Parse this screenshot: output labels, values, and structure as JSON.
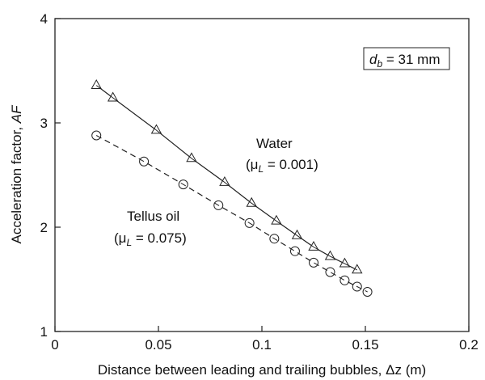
{
  "chart_data": {
    "type": "line",
    "xlabel_text": "Distance between leading and trailing bubbles, ",
    "xlabel_symbol": "Δz",
    "xlabel_unit": " (m)",
    "ylabel_text": "Acceleration factor, ",
    "ylabel_symbol": "AF",
    "xlim": [
      0,
      0.2
    ],
    "ylim": [
      1,
      4
    ],
    "xticks": [
      0,
      0.05,
      0.1,
      0.15,
      0.2
    ],
    "xtick_labels": [
      "0",
      "0.05",
      "0.1",
      "0.15",
      "0.2"
    ],
    "yticks": [
      1,
      2,
      3,
      4
    ],
    "ytick_labels": [
      "1",
      "2",
      "3",
      "4"
    ],
    "grid": false,
    "series": [
      {
        "name": "Water",
        "marker": "triangle",
        "line": "solid",
        "x": [
          0.02,
          0.028,
          0.049,
          0.066,
          0.082,
          0.095,
          0.107,
          0.117,
          0.125,
          0.133,
          0.14,
          0.146
        ],
        "y": [
          3.36,
          3.24,
          2.93,
          2.66,
          2.43,
          2.23,
          2.06,
          1.92,
          1.81,
          1.72,
          1.65,
          1.59
        ]
      },
      {
        "name": "Tellus oil",
        "marker": "circle",
        "line": "dashed",
        "x": [
          0.02,
          0.043,
          0.062,
          0.079,
          0.094,
          0.106,
          0.116,
          0.125,
          0.133,
          0.14,
          0.146,
          0.151
        ],
        "y": [
          2.88,
          2.63,
          2.41,
          2.21,
          2.04,
          1.89,
          1.77,
          1.66,
          1.57,
          1.49,
          1.43,
          1.38
        ]
      }
    ],
    "annotations": {
      "box": {
        "symbol": "d",
        "subscript": "b",
        "text": " = 31 mm"
      },
      "water": {
        "line1": "Water",
        "mu": "μ",
        "sub": "L",
        "value": " = 0.001)"
      },
      "oil": {
        "line1": "Tellus oil",
        "mu": "μ",
        "sub": "L",
        "value": " = 0.075)"
      }
    }
  }
}
